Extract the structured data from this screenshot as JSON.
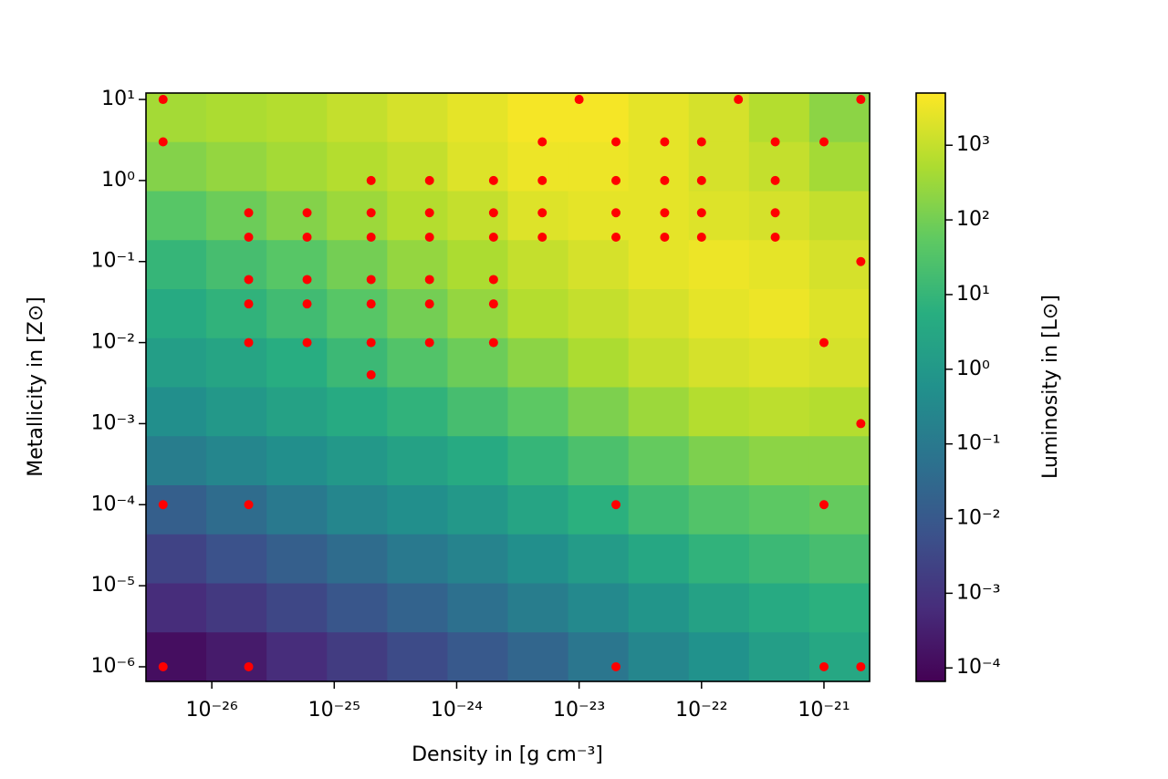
{
  "chart_data": {
    "type": "heatmap",
    "xlabel": "Density in [g cm⁻³]",
    "ylabel": "Metallicity in [Z⊙]",
    "colorbar_label": "Luminosity in [L⊙]",
    "xscale": "log",
    "yscale": "log",
    "colorbar_scale": "log",
    "colormap": "viridis",
    "xlim": [
      2.9e-27,
      2.36e-21
    ],
    "ylim": [
      6.6e-07,
      12
    ],
    "clim": [
      6.6e-05,
      5000
    ],
    "xticks": [
      {
        "value": 1e-26,
        "label": "10⁻²⁶"
      },
      {
        "value": 1e-25,
        "label": "10⁻²⁵"
      },
      {
        "value": 1e-24,
        "label": "10⁻²⁴"
      },
      {
        "value": 1e-23,
        "label": "10⁻²³"
      },
      {
        "value": 1e-22,
        "label": "10⁻²²"
      },
      {
        "value": 1e-21,
        "label": "10⁻²¹"
      }
    ],
    "yticks": [
      {
        "value": 1e-06,
        "label": "10⁻⁶"
      },
      {
        "value": 1e-05,
        "label": "10⁻⁵"
      },
      {
        "value": 0.0001,
        "label": "10⁻⁴"
      },
      {
        "value": 0.001,
        "label": "10⁻³"
      },
      {
        "value": 0.01,
        "label": "10⁻²"
      },
      {
        "value": 0.1,
        "label": "10⁻¹"
      },
      {
        "value": 1,
        "label": "10⁰"
      },
      {
        "value": 10,
        "label": "10¹"
      }
    ],
    "cticks": [
      {
        "value": 0.0001,
        "label": "10⁻⁴"
      },
      {
        "value": 0.001,
        "label": "10⁻³"
      },
      {
        "value": 0.01,
        "label": "10⁻²"
      },
      {
        "value": 0.1,
        "label": "10⁻¹"
      },
      {
        "value": 1,
        "label": "10⁰"
      },
      {
        "value": 10,
        "label": "10¹"
      },
      {
        "value": 100,
        "label": "10²"
      },
      {
        "value": 1000,
        "label": "10³"
      }
    ],
    "z": [
      [
        400,
        500,
        630,
        1000,
        1600,
        2500,
        4000,
        4000,
        2500,
        1600,
        630,
        200
      ],
      [
        160,
        250,
        400,
        630,
        1000,
        2000,
        3200,
        3200,
        2500,
        1600,
        1000,
        400
      ],
      [
        40,
        80,
        160,
        320,
        630,
        1000,
        2000,
        2500,
        2500,
        2000,
        1600,
        1000
      ],
      [
        10,
        20,
        40,
        100,
        250,
        500,
        1000,
        1600,
        2500,
        3200,
        2500,
        1600
      ],
      [
        4,
        8,
        16,
        40,
        100,
        250,
        630,
        1000,
        1600,
        2500,
        3200,
        2000
      ],
      [
        1.6,
        2.5,
        5,
        13,
        32,
        80,
        200,
        500,
        1000,
        1600,
        2000,
        1600
      ],
      [
        0.5,
        1,
        2,
        4,
        8,
        20,
        50,
        130,
        320,
        630,
        800,
        630
      ],
      [
        0.13,
        0.25,
        0.5,
        1,
        2,
        4,
        10,
        25,
        63,
        130,
        200,
        200
      ],
      [
        0.016,
        0.04,
        0.1,
        0.25,
        0.5,
        1,
        2.5,
        6.3,
        16,
        32,
        50,
        63
      ],
      [
        0.0025,
        0.0063,
        0.016,
        0.04,
        0.1,
        0.2,
        0.5,
        1.3,
        3.2,
        8,
        13,
        20
      ],
      [
        0.00063,
        0.0013,
        0.0032,
        0.008,
        0.02,
        0.05,
        0.13,
        0.32,
        0.8,
        2,
        4,
        6.3
      ],
      [
        0.00013,
        0.00025,
        0.00063,
        0.0016,
        0.004,
        0.01,
        0.025,
        0.08,
        0.25,
        0.63,
        1.6,
        3.2
      ]
    ],
    "points": {
      "color": "#ff0000",
      "x": [
        4e-27,
        4e-27,
        4e-27,
        4e-27,
        2e-26,
        2e-26,
        2e-26,
        2e-26,
        2e-26,
        2e-26,
        2e-26,
        6e-26,
        6e-26,
        6e-26,
        6e-26,
        6e-26,
        2e-25,
        2e-25,
        2e-25,
        2e-25,
        2e-25,
        2e-25,
        2e-25,
        6e-25,
        6e-25,
        6e-25,
        6e-25,
        6e-25,
        6e-25,
        2e-24,
        2e-24,
        2e-24,
        2e-24,
        2e-24,
        2e-24,
        5e-24,
        5e-24,
        5e-24,
        5e-24,
        1e-23,
        2e-23,
        2e-23,
        2e-23,
        2e-23,
        2e-23,
        2e-23,
        5e-23,
        5e-23,
        5e-23,
        5e-23,
        1e-22,
        1e-22,
        1e-22,
        1e-22,
        2e-22,
        4e-22,
        4e-22,
        4e-22,
        4e-22,
        1e-21,
        1e-21,
        1e-21,
        1e-21,
        2e-21,
        2e-21,
        2e-21,
        2e-21
      ],
      "y": [
        10,
        3,
        0.0001,
        1e-06,
        0.4,
        0.2,
        0.06,
        0.03,
        0.01,
        0.0001,
        1e-06,
        0.4,
        0.2,
        0.06,
        0.03,
        0.01,
        1,
        0.4,
        0.2,
        0.06,
        0.03,
        0.01,
        0.004,
        1,
        0.4,
        0.2,
        0.06,
        0.03,
        0.01,
        1,
        0.4,
        0.2,
        0.06,
        0.03,
        0.01,
        3,
        1,
        0.4,
        0.2,
        10,
        3,
        1,
        0.4,
        0.2,
        0.0001,
        1e-06,
        3,
        1,
        0.4,
        0.2,
        3,
        1,
        0.4,
        0.2,
        10,
        3,
        1,
        0.4,
        0.2,
        3,
        0.01,
        0.0001,
        1e-06,
        10,
        0.1,
        0.001,
        1e-06
      ]
    }
  }
}
